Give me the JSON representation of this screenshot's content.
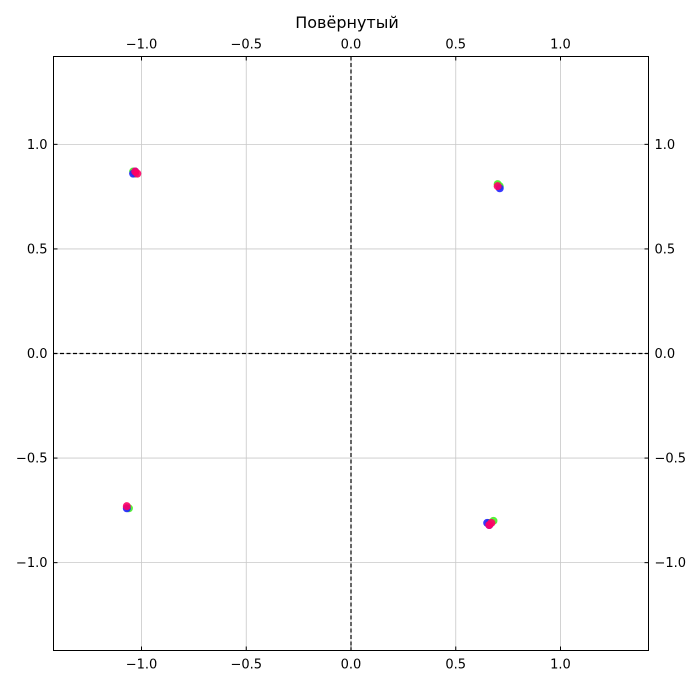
{
  "chart_data": {
    "type": "scatter",
    "title": "Повёрнутый",
    "xlabel": "",
    "ylabel": "",
    "xlim": [
      -1.42,
      1.42
    ],
    "ylim": [
      -1.42,
      1.42
    ],
    "xticks": [
      -1.0,
      -0.5,
      0.0,
      0.5,
      1.0
    ],
    "yticks": [
      -1.0,
      -0.5,
      0.0,
      0.5,
      1.0
    ],
    "xtick_labels": [
      "−1.0",
      "−0.5",
      "0.0",
      "0.5",
      "1.0"
    ],
    "ytick_labels": [
      "−1.0",
      "−0.5",
      "0.0",
      "0.5",
      "1.0"
    ],
    "x_axis_position": "top and bottom",
    "y_axis_position": "left and right",
    "grid": true,
    "reference_lines": {
      "x": 0,
      "y": 0,
      "style": "dashed",
      "color": "#000000"
    },
    "series": [
      {
        "color": "#44ee22",
        "points": [
          [
            -1.04,
            0.87
          ],
          [
            0.7,
            0.81
          ],
          [
            -1.06,
            -0.74
          ],
          [
            0.68,
            -0.8
          ],
          [
            0.66,
            -0.81
          ],
          [
            0.71,
            0.8
          ],
          [
            -1.03,
            0.86
          ]
        ]
      },
      {
        "color": "#2222ff",
        "points": [
          [
            -1.03,
            0.87
          ],
          [
            0.71,
            0.79
          ],
          [
            -1.07,
            -0.74
          ],
          [
            0.65,
            -0.81
          ],
          [
            -1.04,
            0.86
          ],
          [
            0.66,
            -0.82
          ]
        ]
      },
      {
        "color": "#ff0066",
        "points": [
          [
            -1.02,
            0.86
          ],
          [
            0.7,
            0.8
          ],
          [
            -1.07,
            -0.73
          ],
          [
            0.66,
            -0.82
          ],
          [
            0.67,
            -0.81
          ],
          [
            -1.03,
            0.87
          ]
        ]
      }
    ]
  }
}
